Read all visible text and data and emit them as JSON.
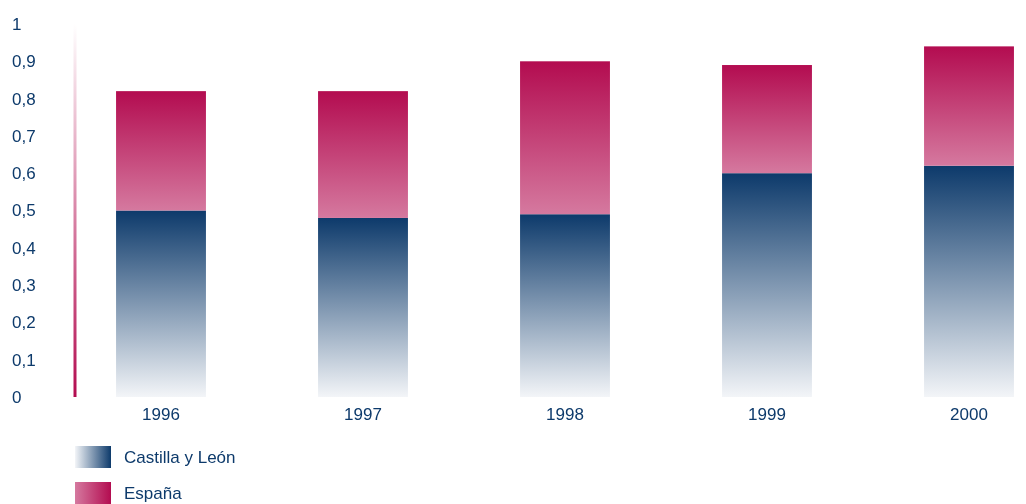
{
  "chart_data": {
    "type": "bar",
    "stacked": true,
    "categories": [
      "1996",
      "1997",
      "1998",
      "1999",
      "2000"
    ],
    "series": [
      {
        "name": "Castilla y León",
        "color": "#0d3a6b",
        "values": [
          0.5,
          0.48,
          0.49,
          0.6,
          0.62
        ]
      },
      {
        "name": "España",
        "color": "#b30c50",
        "values": [
          0.32,
          0.34,
          0.41,
          0.29,
          0.32
        ]
      }
    ],
    "ylim": [
      0,
      1
    ],
    "yticks": [
      0,
      {
        "value": 0.1,
        "label": "0,1"
      },
      {
        "value": 0.2,
        "label": "0,2"
      },
      {
        "value": 0.3,
        "label": "0,3"
      },
      {
        "value": 0.4,
        "label": "0,4"
      },
      {
        "value": 0.5,
        "label": "0,5"
      },
      {
        "value": 0.6,
        "label": "0,6"
      },
      {
        "value": 0.7,
        "label": "0,7"
      },
      {
        "value": 0.8,
        "label": "0,8"
      },
      {
        "value": 0.9,
        "label": "0,9"
      },
      1
    ],
    "legend": "bottom left"
  }
}
